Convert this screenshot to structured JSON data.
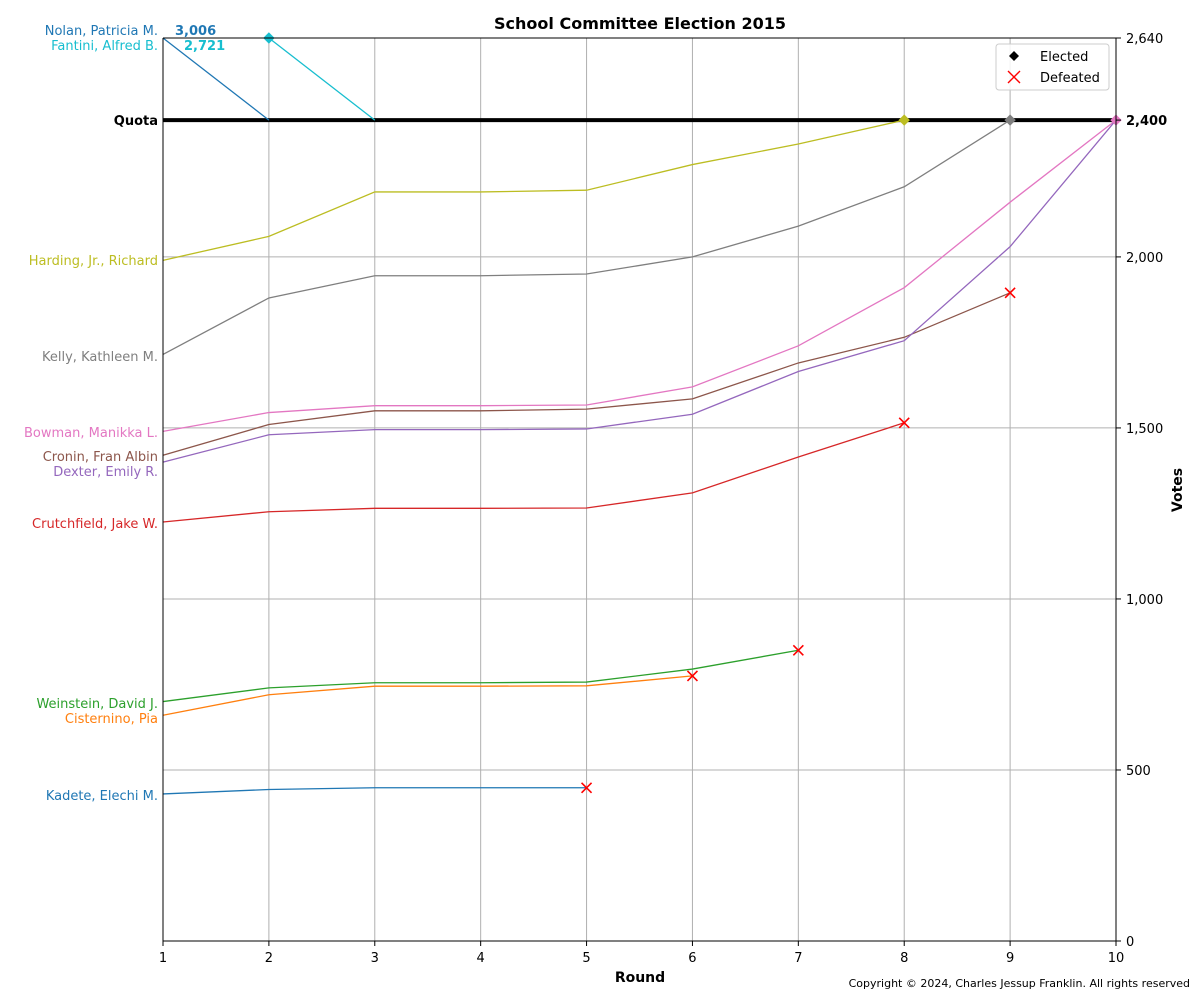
{
  "chart_data": {
    "type": "line",
    "title": "School Committee Election 2015",
    "xlabel": "Round",
    "ylabel": "Votes",
    "x": [
      1,
      2,
      3,
      4,
      5,
      6,
      7,
      8,
      9,
      10
    ],
    "xlim": [
      1,
      10
    ],
    "ylim": [
      0,
      2640
    ],
    "y_ticks": [
      "0",
      "500",
      "1,000",
      "1,500",
      "2,000",
      "2,400",
      "2,640"
    ],
    "y_tick_values": [
      0,
      500,
      1000,
      1500,
      2000,
      2400,
      2640
    ],
    "x_ticks": [
      "1",
      "2",
      "3",
      "4",
      "5",
      "6",
      "7",
      "8",
      "9",
      "10"
    ],
    "grid": true,
    "legend_position": "top-right",
    "legend": [
      {
        "label": "Elected",
        "marker": "diamond",
        "color": "#000000"
      },
      {
        "label": "Defeated",
        "marker": "x",
        "color": "#ff0000"
      }
    ],
    "quota": {
      "label": "Quota",
      "value": 2400,
      "value_label": "2,400"
    },
    "series": [
      {
        "name": "Nolan, Patricia M.",
        "color": "#1f77b4",
        "x": [
          1,
          2
        ],
        "values": [
          2640,
          2400
        ],
        "start_value_label": "3,006",
        "outcome": "elected",
        "end_marker": "none"
      },
      {
        "name": "Fantini, Alfred B.",
        "color": "#17becf",
        "x": [
          2,
          3
        ],
        "values": [
          2640,
          2400
        ],
        "start_value_label": "2,721",
        "outcome": "elected",
        "end_marker": "none",
        "start_marker": "diamond"
      },
      {
        "name": "Harding, Jr., Richard",
        "color": "#bcbd22",
        "x": [
          1,
          2,
          3,
          4,
          5,
          6,
          7,
          8
        ],
        "values": [
          1990,
          2060,
          2190,
          2190,
          2195,
          2270,
          2330,
          2400
        ],
        "outcome": "elected",
        "end_marker": "diamond"
      },
      {
        "name": "Kelly, Kathleen M.",
        "color": "#7f7f7f",
        "x": [
          1,
          2,
          3,
          4,
          5,
          6,
          7,
          8,
          9
        ],
        "values": [
          1715,
          1880,
          1945,
          1945,
          1950,
          2000,
          2090,
          2205,
          2400
        ],
        "outcome": "elected",
        "end_marker": "diamond"
      },
      {
        "name": "Bowman, Manikka L.",
        "color": "#e377c2",
        "x": [
          1,
          2,
          3,
          4,
          5,
          6,
          7,
          8,
          9,
          10
        ],
        "values": [
          1490,
          1545,
          1565,
          1565,
          1567,
          1620,
          1740,
          1910,
          2160,
          2400
        ],
        "outcome": "elected",
        "end_marker": "diamond"
      },
      {
        "name": "Cronin, Fran Albin",
        "color": "#8c564b",
        "x": [
          1,
          2,
          3,
          4,
          5,
          6,
          7,
          8,
          9
        ],
        "values": [
          1420,
          1510,
          1550,
          1550,
          1555,
          1585,
          1690,
          1765,
          1895
        ],
        "outcome": "defeated",
        "end_marker": "x"
      },
      {
        "name": "Dexter, Emily R.",
        "color": "#9467bd",
        "x": [
          1,
          2,
          3,
          4,
          5,
          6,
          7,
          8,
          9,
          10
        ],
        "values": [
          1400,
          1480,
          1495,
          1495,
          1497,
          1540,
          1665,
          1755,
          2030,
          2400
        ],
        "outcome": "elected",
        "end_marker": "none"
      },
      {
        "name": "Crutchfield, Jake W.",
        "color": "#d62728",
        "x": [
          1,
          2,
          3,
          4,
          5,
          6,
          7,
          8
        ],
        "values": [
          1225,
          1255,
          1265,
          1265,
          1266,
          1310,
          1415,
          1515
        ],
        "outcome": "defeated",
        "end_marker": "x"
      },
      {
        "name": "Weinstein, David J.",
        "color": "#2ca02c",
        "x": [
          1,
          2,
          3,
          4,
          5,
          6,
          7
        ],
        "values": [
          700,
          740,
          755,
          755,
          757,
          795,
          850
        ],
        "outcome": "defeated",
        "end_marker": "x"
      },
      {
        "name": "Cisternino, Pia",
        "color": "#ff7f0e",
        "x": [
          1,
          2,
          3,
          4,
          5,
          6
        ],
        "values": [
          660,
          720,
          745,
          745,
          746,
          775
        ],
        "outcome": "defeated",
        "end_marker": "x"
      },
      {
        "name": "Kadete, Elechi M.",
        "color": "#1f77b4",
        "x": [
          1,
          2,
          3,
          4,
          5
        ],
        "values": [
          430,
          443,
          448,
          448,
          448
        ],
        "outcome": "defeated",
        "end_marker": "x"
      }
    ],
    "copyright": "Copyright © 2024, Charles Jessup Franklin. All rights reserved"
  }
}
